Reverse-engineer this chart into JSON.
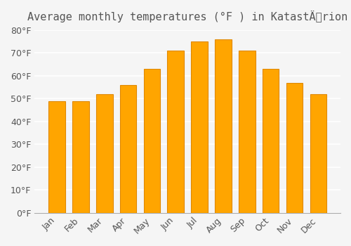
{
  "title": "Average monthly temperatures (°F ) in KatastÄrion",
  "months": [
    "Jan",
    "Feb",
    "Mar",
    "Apr",
    "May",
    "Jun",
    "Jul",
    "Aug",
    "Sep",
    "Oct",
    "Nov",
    "Dec"
  ],
  "values": [
    49,
    49,
    52,
    56,
    63,
    71,
    75,
    76,
    71,
    63,
    57,
    52
  ],
  "bar_color": "#FFA500",
  "bar_edge_color": "#E08800",
  "background_color": "#F5F5F5",
  "grid_color": "#FFFFFF",
  "tick_color": "#AAAAAA",
  "text_color": "#555555",
  "ylim": [
    0,
    80
  ],
  "yticks": [
    0,
    10,
    20,
    30,
    40,
    50,
    60,
    70,
    80
  ],
  "title_fontsize": 11,
  "tick_fontsize": 9
}
